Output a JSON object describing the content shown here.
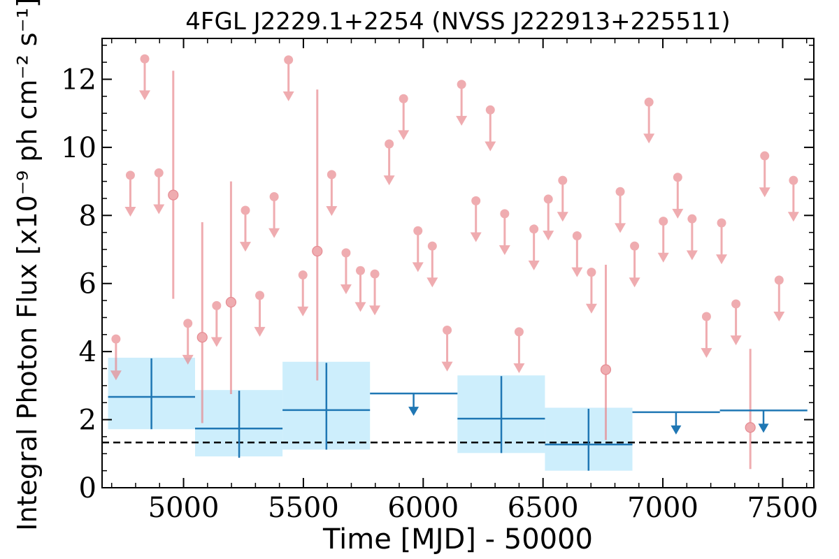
{
  "chart_data": {
    "type": "scatter",
    "title": "4FGL J2229.1+2254 (NVSS J222913+225511)",
    "xlabel": "Time [MJD] - 50000",
    "ylabel": "Integral Photon Flux [x10⁻⁹ ph cm⁻² s⁻¹]",
    "xlim": [
      4660,
      7630
    ],
    "ylim": [
      0,
      13.2
    ],
    "x_ticks": [
      "5000",
      "5500",
      "6000",
      "6500",
      "7000",
      "7500"
    ],
    "y_ticks": [
      "0",
      "2",
      "4",
      "6",
      "8",
      "10",
      "12"
    ],
    "reference_line": {
      "y": 1.33,
      "style": "dashed",
      "color": "#000000"
    },
    "colors": {
      "short_bins": "#e8868c",
      "long_bins": "#1f77b4",
      "long_bin_band": "#cdeefc"
    },
    "series": [
      {
        "kind": "upper_limits_short",
        "points": [
          {
            "x": 4718,
            "y": 4.37
          },
          {
            "x": 4778,
            "y": 9.18
          },
          {
            "x": 4838,
            "y": 12.6
          },
          {
            "x": 4897,
            "y": 9.25
          },
          {
            "x": 5018,
            "y": 4.83
          },
          {
            "x": 5138,
            "y": 5.35
          },
          {
            "x": 5258,
            "y": 8.15
          },
          {
            "x": 5318,
            "y": 5.65
          },
          {
            "x": 5378,
            "y": 8.55
          },
          {
            "x": 5438,
            "y": 12.57
          },
          {
            "x": 5498,
            "y": 6.25
          },
          {
            "x": 5618,
            "y": 9.2
          },
          {
            "x": 5678,
            "y": 6.9
          },
          {
            "x": 5738,
            "y": 6.38
          },
          {
            "x": 5798,
            "y": 6.28
          },
          {
            "x": 5858,
            "y": 10.1
          },
          {
            "x": 5918,
            "y": 11.43
          },
          {
            "x": 5978,
            "y": 7.55
          },
          {
            "x": 6038,
            "y": 7.1
          },
          {
            "x": 6100,
            "y": 4.63
          },
          {
            "x": 6160,
            "y": 11.85
          },
          {
            "x": 6220,
            "y": 8.43
          },
          {
            "x": 6280,
            "y": 11.1
          },
          {
            "x": 6340,
            "y": 8.05
          },
          {
            "x": 6400,
            "y": 4.58
          },
          {
            "x": 6462,
            "y": 7.6
          },
          {
            "x": 6522,
            "y": 8.48
          },
          {
            "x": 6582,
            "y": 9.03
          },
          {
            "x": 6642,
            "y": 7.4
          },
          {
            "x": 6702,
            "y": 6.33
          },
          {
            "x": 6822,
            "y": 8.7
          },
          {
            "x": 6882,
            "y": 7.1
          },
          {
            "x": 6942,
            "y": 11.33
          },
          {
            "x": 7002,
            "y": 7.83
          },
          {
            "x": 7062,
            "y": 9.12
          },
          {
            "x": 7122,
            "y": 7.9
          },
          {
            "x": 7182,
            "y": 5.03
          },
          {
            "x": 7245,
            "y": 7.78
          },
          {
            "x": 7305,
            "y": 5.4
          },
          {
            "x": 7425,
            "y": 9.75
          },
          {
            "x": 7485,
            "y": 6.1
          },
          {
            "x": 7545,
            "y": 9.03
          }
        ]
      },
      {
        "kind": "detections_short",
        "points": [
          {
            "x": 4957,
            "y": 8.6,
            "lo": 5.55,
            "hi": 12.25
          },
          {
            "x": 5078,
            "y": 4.42,
            "lo": 1.9,
            "hi": 7.8
          },
          {
            "x": 5198,
            "y": 5.45,
            "lo": 2.75,
            "hi": 9.0
          },
          {
            "x": 5558,
            "y": 6.95,
            "lo": 3.15,
            "hi": 11.7
          },
          {
            "x": 6762,
            "y": 3.47,
            "lo": 1.4,
            "hi": 6.55
          },
          {
            "x": 7365,
            "y": 1.77,
            "lo": 0.55,
            "hi": 4.08
          }
        ]
      },
      {
        "kind": "detections_long",
        "points": [
          {
            "x": 4866,
            "x_lo": 4685,
            "x_hi": 5048,
            "y": 2.67,
            "lo": 1.72,
            "hi": 3.8,
            "band_lo": 1.72,
            "band_hi": 3.82
          },
          {
            "x": 5232,
            "x_lo": 5048,
            "x_hi": 5413,
            "y": 1.74,
            "lo": 0.88,
            "hi": 2.85,
            "band_lo": 0.92,
            "band_hi": 2.87
          },
          {
            "x": 5596,
            "x_lo": 5413,
            "x_hi": 5778,
            "y": 2.28,
            "lo": 1.12,
            "hi": 3.67,
            "band_lo": 1.12,
            "band_hi": 3.7
          },
          {
            "x": 6326,
            "x_lo": 6143,
            "x_hi": 6508,
            "y": 2.03,
            "lo": 1.02,
            "hi": 3.28,
            "band_lo": 1.02,
            "band_hi": 3.3
          },
          {
            "x": 6690,
            "x_lo": 6508,
            "x_hi": 6873,
            "y": 1.27,
            "lo": 0.5,
            "hi": 2.32,
            "band_lo": 0.5,
            "band_hi": 2.35
          }
        ]
      },
      {
        "kind": "upper_limits_long",
        "points": [
          {
            "x_lo": 5778,
            "x_hi": 6143,
            "x": 5960,
            "y": 2.77
          },
          {
            "x_lo": 6873,
            "x_hi": 7238,
            "x": 7055,
            "y": 2.22
          },
          {
            "x_lo": 7238,
            "x_hi": 7603,
            "x": 7420,
            "y": 2.27
          }
        ]
      }
    ]
  }
}
